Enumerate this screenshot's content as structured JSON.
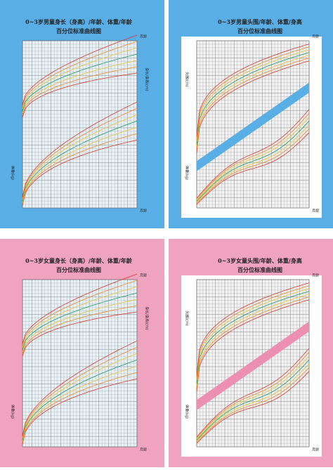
{
  "panels": [
    {
      "title": [
        "0~3岁男童身长（身高）/年龄、体重/年龄",
        "百分位标准曲线图"
      ],
      "labels": [
        "月龄",
        "身长/身高(cm)",
        "体重(kg)"
      ]
    },
    {
      "title": [
        "0~3岁男童头围/年龄、体重/身高",
        "百分位标准曲线图"
      ],
      "labels": [
        "月龄",
        "头围(cm)",
        "体重(kg)"
      ]
    },
    {
      "title": [
        "0~3岁女童身长（身高）/年龄、体重/年龄",
        "百分位标准曲线图"
      ],
      "labels": [
        "月龄",
        "身长/身高(cm)",
        "体重(kg)"
      ]
    },
    {
      "title": [
        "0~3岁女童头围/年龄、体重/身高",
        "百分位标准曲线图"
      ],
      "labels": [
        "月龄",
        "头围(cm)",
        "体重(kg)"
      ]
    }
  ]
}
